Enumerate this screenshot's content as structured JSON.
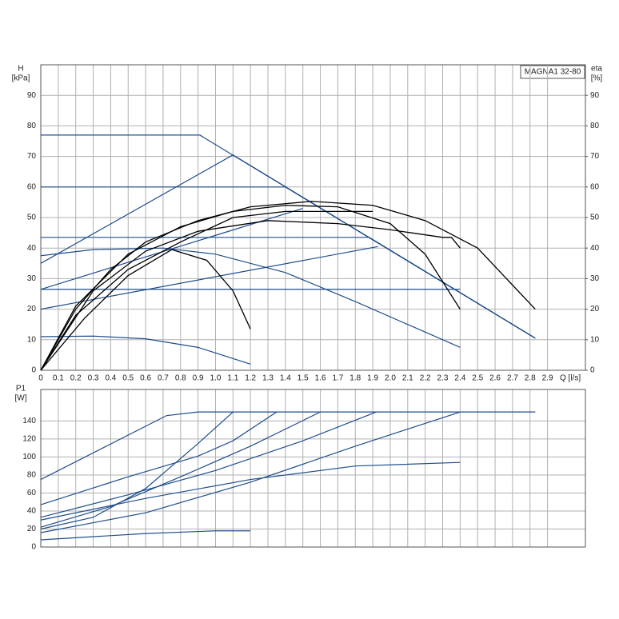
{
  "legend_box": "MAGNA1 32-80",
  "chart_data": [
    {
      "type": "line",
      "y_label": "H",
      "y_unit": "[kPa]",
      "y2_label": "eta",
      "y2_unit": "[%]",
      "x_label": "Q [l/s]",
      "xlim": [
        0,
        3.117
      ],
      "ylim": [
        0,
        100
      ],
      "y2lim": [
        0,
        100
      ],
      "grid": true,
      "xticks": [
        0,
        0.1,
        0.2,
        0.3,
        0.4,
        0.5,
        0.6,
        0.7,
        0.8,
        0.9,
        {
          "value": 1,
          "label": "1.0"
        },
        1.1,
        1.2,
        1.3,
        1.4,
        1.5,
        1.6,
        1.7,
        1.8,
        1.9,
        {
          "value": 2,
          "label": "2.0"
        },
        2.1,
        2.2,
        2.3,
        2.4,
        2.5,
        2.6,
        2.7,
        2.8,
        2.9
      ],
      "yticks": [
        0,
        10,
        20,
        30,
        40,
        50,
        60,
        70,
        80,
        90
      ],
      "y2ticks": [
        0,
        10,
        20,
        30,
        40,
        50,
        60,
        70,
        80,
        90
      ],
      "series": [
        {
          "color": "#1f4e8c",
          "x": [
            0,
            0.91,
            2.83
          ],
          "values": [
            77,
            77,
            10.5
          ]
        },
        {
          "color": "#1f4e8c",
          "x": [
            0,
            1.1,
            2.83
          ],
          "values": [
            35,
            70.5,
            10.5
          ]
        },
        {
          "color": "#1f4e8c",
          "x": [
            0,
            1.4,
            2.83
          ],
          "values": [
            60,
            60,
            10.5
          ]
        },
        {
          "color": "#1f4e8c",
          "x": [
            0,
            1.88,
            2.83
          ],
          "values": [
            43.5,
            43.5,
            10.5
          ]
        },
        {
          "color": "#1f4e8c",
          "x": [
            0,
            1.5
          ],
          "values": [
            26.5,
            53
          ]
        },
        {
          "color": "#1f4e8c",
          "x": [
            0,
            1.93
          ],
          "values": [
            20,
            40.5
          ]
        },
        {
          "color": "#1f4e8c",
          "x": [
            0,
            2.4
          ],
          "values": [
            26.5,
            26.5
          ]
        },
        {
          "color": "#1f4e8c",
          "x": [
            0,
            0.3,
            0.7,
            1.0,
            1.4,
            1.8,
            2.1,
            2.4
          ],
          "values": [
            37.5,
            39.5,
            40,
            38,
            32,
            22.5,
            15,
            7.5
          ]
        },
        {
          "color": "#1f4e8c",
          "x": [
            0,
            0.3,
            0.6,
            0.9,
            1.2
          ],
          "values": [
            11,
            11.2,
            10.3,
            7.5,
            2
          ]
        },
        {
          "color": "#000000",
          "axis": "y2",
          "x": [
            0,
            0.2,
            0.4,
            0.6,
            0.9,
            1.2,
            1.55,
            1.9,
            2.2,
            2.5,
            2.83
          ],
          "values": [
            0,
            20,
            33,
            42,
            49,
            53.5,
            55.3,
            54,
            49,
            40,
            20
          ]
        },
        {
          "color": "#000000",
          "axis": "y2",
          "x": [
            0,
            0.2,
            0.5,
            0.8,
            1.1,
            1.4,
            1.7,
            2.0,
            2.2,
            2.4
          ],
          "values": [
            0,
            21,
            38,
            47,
            52,
            54,
            53.5,
            48,
            38,
            20
          ]
        },
        {
          "color": "#000000",
          "axis": "y2",
          "x": [
            0,
            0.3,
            0.6,
            0.9,
            1.3,
            1.7,
            2.0,
            2.3,
            2.35,
            2.4
          ],
          "values": [
            0,
            26,
            39,
            45.5,
            49,
            48,
            46,
            43.5,
            43.5,
            40
          ]
        },
        {
          "color": "#000000",
          "axis": "y2",
          "x": [
            0,
            0.2,
            0.5,
            0.8,
            1.1,
            1.4,
            1.9
          ],
          "values": [
            0,
            18,
            33,
            42,
            50,
            52,
            52
          ]
        },
        {
          "color": "#000000",
          "axis": "y2",
          "x": [
            0,
            0.25,
            0.5,
            0.75,
            0.95,
            1.1,
            1.2
          ],
          "values": [
            0,
            17,
            31,
            39.5,
            36,
            26,
            13.5
          ]
        }
      ]
    },
    {
      "type": "line",
      "y_label": "P1",
      "y_unit": "[W]",
      "xlim": [
        0,
        3.117
      ],
      "ylim": [
        0,
        175
      ],
      "grid": true,
      "xticks": [
        0,
        0.1,
        0.2,
        0.3,
        0.4,
        0.5,
        0.6,
        0.7,
        0.8,
        0.9,
        1,
        1.1,
        1.2,
        1.3,
        1.4,
        1.5,
        1.6,
        1.7,
        1.8,
        1.9,
        2,
        2.1,
        2.2,
        2.3,
        2.4,
        2.5,
        2.6,
        2.7,
        2.8,
        2.9
      ],
      "yticks": [
        0,
        20,
        40,
        60,
        80,
        100,
        120,
        140
      ],
      "series": [
        {
          "color": "#1f4e8c",
          "x": [
            0,
            0.72,
            0.9,
            2.83
          ],
          "values": [
            75,
            146,
            150,
            150
          ]
        },
        {
          "color": "#1f4e8c",
          "x": [
            0,
            0.5,
            0.9,
            1.1,
            1.35
          ],
          "values": [
            47,
            78,
            101,
            118,
            150
          ]
        },
        {
          "color": "#1f4e8c",
          "x": [
            0,
            0.3,
            0.6,
            0.9,
            1.1
          ],
          "values": [
            20,
            33,
            65,
            115,
            150
          ]
        },
        {
          "color": "#1f4e8c",
          "x": [
            0,
            0.4,
            0.8,
            1.2,
            1.6
          ],
          "values": [
            22,
            45,
            78,
            112,
            150
          ]
        },
        {
          "color": "#1f4e8c",
          "x": [
            0,
            0.5,
            1.0,
            1.5,
            1.92
          ],
          "values": [
            33,
            58,
            85,
            118,
            150
          ]
        },
        {
          "color": "#1f4e8c",
          "x": [
            0,
            0.6,
            1.2,
            1.8,
            2.4
          ],
          "values": [
            16,
            38,
            72,
            112,
            150
          ]
        },
        {
          "color": "#1f4e8c",
          "x": [
            0,
            0.6,
            1.2,
            1.8,
            2.4
          ],
          "values": [
            30,
            54,
            75,
            90,
            94
          ]
        },
        {
          "color": "#1f4e8c",
          "x": [
            0,
            0.6,
            1.0,
            1.2
          ],
          "values": [
            8,
            15,
            18,
            18
          ]
        }
      ]
    }
  ]
}
